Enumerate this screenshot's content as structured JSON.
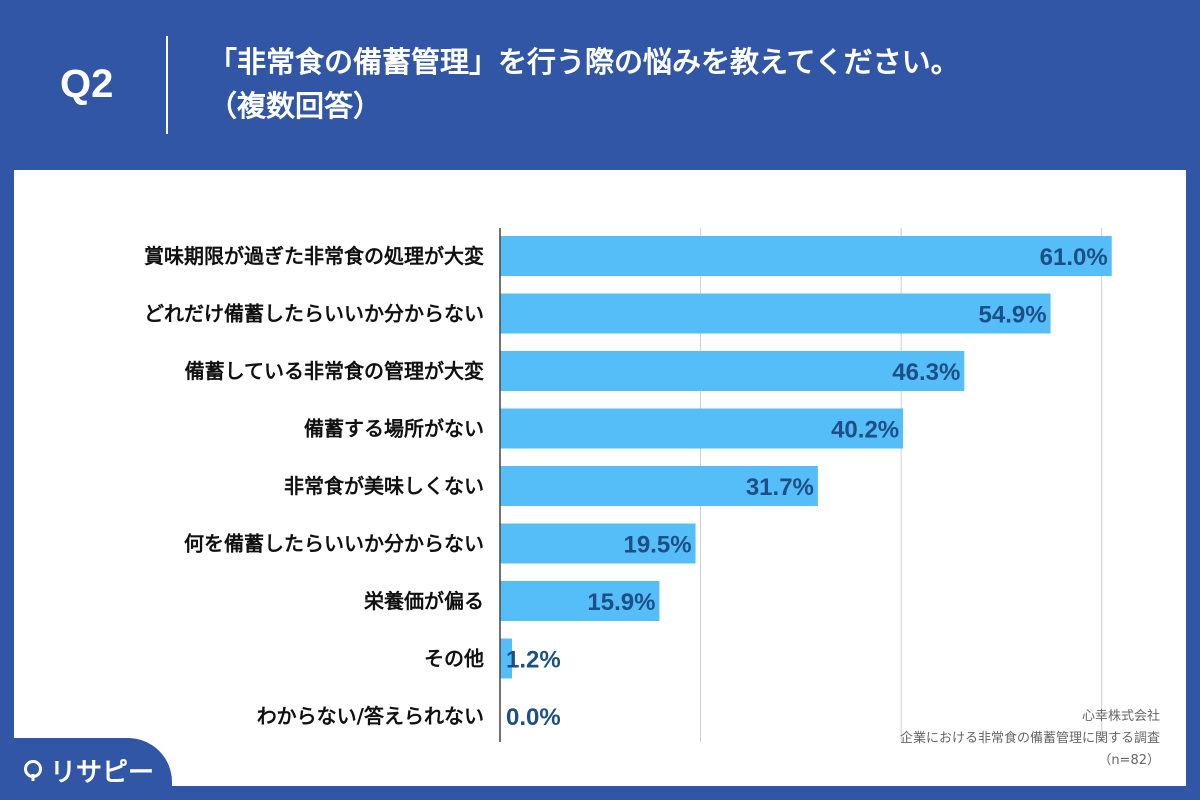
{
  "header": {
    "question": "Q2",
    "title_line1": "「非常食の備蓄管理」を行う際の悩みを教えてください。",
    "title_line2": "（複数回答）"
  },
  "chart_data": {
    "type": "bar",
    "orientation": "horizontal",
    "categories": [
      "賞味期限が過ぎた非常食の処理が大変",
      "どれだけ備蓄したらいいか分からない",
      "備蓄している非常食の管理が大変",
      "備蓄する場所がない",
      "非常食が美味しくない",
      "何を備蓄したらいいか分からない",
      "栄養価が偏る",
      "その他",
      "わからない/答えられない"
    ],
    "values": [
      61.0,
      54.9,
      46.3,
      40.2,
      31.7,
      19.5,
      15.9,
      1.2,
      0.0
    ],
    "value_labels": [
      "61.0%",
      "54.9%",
      "46.3%",
      "40.2%",
      "31.7%",
      "19.5%",
      "15.9%",
      "1.2%",
      "0.0%"
    ],
    "xlim": [
      0,
      70
    ],
    "grid": true,
    "bar_color": "#55bdf8"
  },
  "source": {
    "company": "心幸株式会社",
    "survey": "企業における非常食の備蓄管理に関する調査",
    "sample": "（n=82）"
  },
  "logo": {
    "text": "リサピー"
  },
  "colors": {
    "background": "#3156a6",
    "panel": "#ffffff",
    "value_text": "#1d4f86"
  }
}
